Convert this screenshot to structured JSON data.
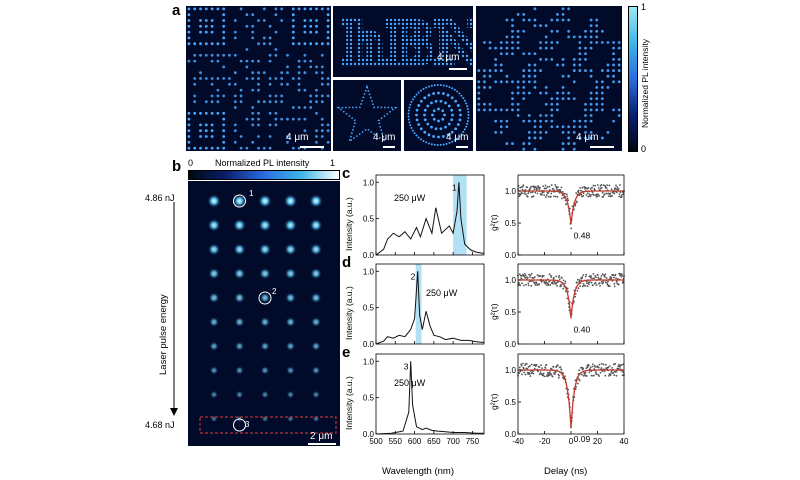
{
  "panel_a": {
    "label": "a",
    "scale_bar": "4 μm",
    "colorbar": {
      "label": "Normalized PL intensity",
      "max": "1",
      "min": "0"
    },
    "hbn_text": "hBN"
  },
  "panel_b": {
    "label": "b",
    "colorbar_label": "Normalized PL intensity",
    "colorbar_min": "0",
    "colorbar_max": "1",
    "energy_top": "4.86 nJ",
    "energy_bottom": "4.68 nJ",
    "axis_label": "Laser pulse energy",
    "scale_bar": "2 μm",
    "markers": [
      "1",
      "2",
      "3"
    ],
    "grid_rows": 10,
    "grid_cols": 5
  },
  "spectra": {
    "ylabel": "Intensity (a.u.)",
    "xlabel": "Wavelength (nm)",
    "xticks": [
      "500",
      "550",
      "600",
      "650",
      "700",
      "750"
    ],
    "yticks": [
      "0.0",
      "0.5",
      "1.0"
    ],
    "panels": [
      {
        "label": "c",
        "power": "250 μW",
        "peak_label": "1"
      },
      {
        "label": "d",
        "power": "250 μW",
        "peak_label": "2"
      },
      {
        "label": "e",
        "power": "250 μW",
        "peak_label": "3"
      }
    ]
  },
  "g2": {
    "ylabel": "g²(τ)",
    "xlabel": "Delay (ns)",
    "xticks": [
      "-40",
      "-20",
      "0",
      "20",
      "40"
    ],
    "yticks": [
      "0.0",
      "0.5",
      "1.0"
    ],
    "panels": [
      {
        "value": "0.48"
      },
      {
        "value": "0.40"
      },
      {
        "value": "0.09"
      }
    ]
  },
  "chart_data": [
    {
      "type": "line",
      "title": "",
      "xlabel": "Wavelength (nm)",
      "ylabel": "Intensity (a.u.)",
      "xlim": [
        500,
        780
      ],
      "ylim": [
        0,
        1.1
      ],
      "series": [
        {
          "name": "1",
          "x": [
            500,
            520,
            530,
            545,
            560,
            575,
            590,
            605,
            615,
            630,
            645,
            655,
            670,
            690,
            700,
            710,
            715,
            720,
            730,
            745,
            760,
            780
          ],
          "values": [
            0.0,
            0.08,
            0.22,
            0.3,
            0.25,
            0.32,
            0.22,
            0.38,
            0.25,
            0.5,
            0.3,
            0.65,
            0.3,
            0.4,
            0.3,
            0.6,
            1.0,
            0.5,
            0.15,
            0.07,
            0.04,
            0.02
          ]
        }
      ],
      "highlight": [
        700,
        735
      ]
    },
    {
      "type": "line",
      "title": "",
      "xlabel": "Wavelength (nm)",
      "ylabel": "Intensity (a.u.)",
      "xlim": [
        500,
        780
      ],
      "ylim": [
        0,
        1.1
      ],
      "series": [
        {
          "name": "2",
          "x": [
            500,
            520,
            530,
            545,
            560,
            575,
            590,
            600,
            608,
            613,
            620,
            630,
            640,
            650,
            665,
            680,
            700,
            720,
            740,
            760,
            780
          ],
          "values": [
            0.0,
            0.04,
            0.1,
            0.08,
            0.12,
            0.1,
            0.2,
            0.35,
            1.0,
            0.4,
            0.2,
            0.45,
            0.25,
            0.12,
            0.1,
            0.06,
            0.08,
            0.05,
            0.05,
            0.03,
            0.02
          ]
        }
      ],
      "highlight": [
        603,
        618
      ]
    },
    {
      "type": "line",
      "title": "",
      "xlabel": "Wavelength (nm)",
      "ylabel": "Intensity (a.u.)",
      "xlim": [
        500,
        780
      ],
      "ylim": [
        0,
        1.1
      ],
      "series": [
        {
          "name": "3",
          "x": [
            500,
            540,
            570,
            585,
            590,
            595,
            605,
            620,
            630,
            645,
            660,
            680,
            700,
            730,
            760,
            780
          ],
          "values": [
            0.0,
            0.01,
            0.04,
            0.3,
            1.0,
            0.4,
            0.1,
            0.06,
            0.08,
            0.05,
            0.04,
            0.03,
            0.02,
            0.02,
            0.01,
            0.01
          ]
        }
      ],
      "highlight": null
    },
    {
      "type": "scatter",
      "title": "",
      "xlabel": "Delay (ns)",
      "ylabel": "g²(τ)",
      "xlim": [
        -40,
        40
      ],
      "ylim": [
        0,
        1.25
      ],
      "series": [
        {
          "name": "",
          "g2_zero": 0.48,
          "fit_tau": 2.5
        }
      ]
    },
    {
      "type": "scatter",
      "title": "",
      "xlabel": "Delay (ns)",
      "ylabel": "g²(τ)",
      "xlim": [
        -40,
        40
      ],
      "ylim": [
        0,
        1.25
      ],
      "series": [
        {
          "name": "",
          "g2_zero": 0.4,
          "fit_tau": 2.5
        }
      ]
    },
    {
      "type": "scatter",
      "title": "",
      "xlabel": "Delay (ns)",
      "ylabel": "g²(τ)",
      "xlim": [
        -40,
        40
      ],
      "ylim": [
        0,
        1.25
      ],
      "series": [
        {
          "name": "",
          "g2_zero": 0.09,
          "fit_tau": 2.5
        }
      ]
    }
  ],
  "colors": {
    "image_bg": "#020a2a",
    "emitter": "#4aa8ff",
    "highlight": "#9fd8f2",
    "fit": "#c0392b",
    "dashed_box": "#e53935"
  }
}
